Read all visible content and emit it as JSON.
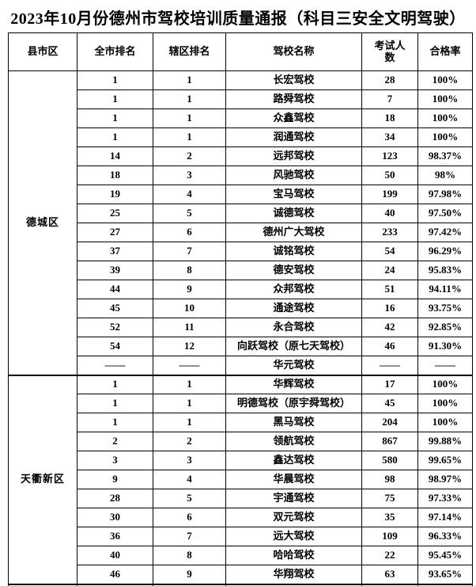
{
  "page": {
    "title": "2023年10月份德州市驾校培训质量通报（科目三安全文明驾驶）"
  },
  "table": {
    "headers": [
      "县市区",
      "全市排名",
      "辖区排名",
      "驾校名称",
      "考试人数",
      "合格率"
    ],
    "sections": [
      {
        "district": "德城区",
        "rows": [
          [
            "1",
            "1",
            "长宏驾校",
            "28",
            "100%"
          ],
          [
            "1",
            "1",
            "路舜驾校",
            "7",
            "100%"
          ],
          [
            "1",
            "1",
            "众鑫驾校",
            "18",
            "100%"
          ],
          [
            "1",
            "1",
            "润通驾校",
            "34",
            "100%"
          ],
          [
            "14",
            "2",
            "远邦驾校",
            "123",
            "98.37%"
          ],
          [
            "18",
            "3",
            "风驰驾校",
            "50",
            "98%"
          ],
          [
            "19",
            "4",
            "宝马驾校",
            "199",
            "97.98%"
          ],
          [
            "25",
            "5",
            "诚德驾校",
            "40",
            "97.50%"
          ],
          [
            "27",
            "6",
            "德州广大驾校",
            "233",
            "97.42%"
          ],
          [
            "37",
            "7",
            "诚铭驾校",
            "54",
            "96.29%"
          ],
          [
            "39",
            "8",
            "德安驾校",
            "24",
            "95.83%"
          ],
          [
            "44",
            "9",
            "众邦驾校",
            "51",
            "94.11%"
          ],
          [
            "45",
            "10",
            "通途驾校",
            "16",
            "93.75%"
          ],
          [
            "52",
            "11",
            "永合驾校",
            "42",
            "92.85%"
          ],
          [
            "54",
            "12",
            "向跃驾校（原七天驾校）",
            "46",
            "91.30%"
          ],
          [
            "——",
            "——",
            "华元驾校",
            "——",
            "——"
          ]
        ]
      },
      {
        "district": "天衢新区",
        "rows": [
          [
            "1",
            "1",
            "华辉驾校",
            "17",
            "100%"
          ],
          [
            "1",
            "1",
            "明德驾校（原宇舜驾校）",
            "45",
            "100%"
          ],
          [
            "1",
            "1",
            "黑马驾校",
            "204",
            "100%"
          ],
          [
            "2",
            "2",
            "领航驾校",
            "867",
            "99.88%"
          ],
          [
            "3",
            "3",
            "鑫达驾校",
            "580",
            "99.65%"
          ],
          [
            "9",
            "4",
            "华晨驾校",
            "98",
            "98.97%"
          ],
          [
            "28",
            "5",
            "宇通驾校",
            "75",
            "97.33%"
          ],
          [
            "30",
            "6",
            "双元驾校",
            "35",
            "97.14%"
          ],
          [
            "36",
            "7",
            "远大驾校",
            "109",
            "96.33%"
          ],
          [
            "40",
            "8",
            "哈哈驾校",
            "22",
            "95.45%"
          ],
          [
            "46",
            "9",
            "华翔驾校",
            "63",
            "93.65%"
          ]
        ]
      },
      {
        "district": "",
        "rows": [
          [
            "",
            "",
            "",
            "",
            ""
          ]
        ]
      }
    ]
  }
}
